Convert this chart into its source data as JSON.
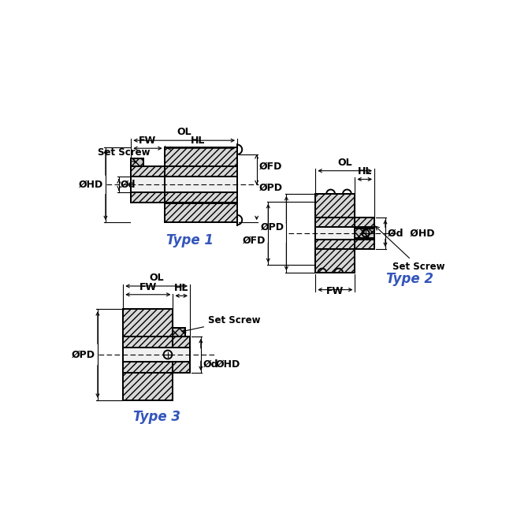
{
  "bg_color": "#ffffff",
  "line_color": "#000000",
  "dim_color": "#000000",
  "label_color": "#3355bb",
  "type1_label": "Type 1",
  "type2_label": "Type 2",
  "type3_label": "Type 3",
  "dim_fontsize": 9,
  "label_fontsize": 12,
  "annot_fontsize": 8.5,
  "lw": 1.4,
  "thin_lw": 0.8,
  "hatch_color": "#d8d8d8",
  "bore_color": "#f0f0f0",
  "ss_color": "#c8c8c8"
}
